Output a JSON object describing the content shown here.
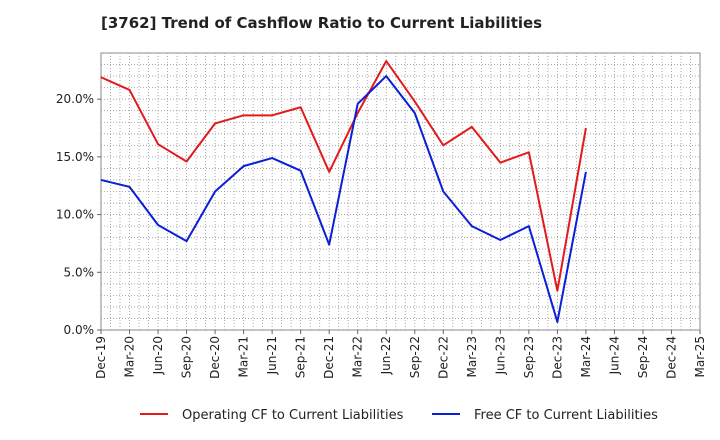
{
  "chart_data": {
    "type": "line",
    "title": "[3762]  Trend of Cashflow Ratio to Current Liabilities",
    "xlabel": "",
    "ylabel": "",
    "ylim": [
      0,
      24
    ],
    "yticks": [
      "0.0%",
      "5.0%",
      "10.0%",
      "15.0%",
      "20.0%"
    ],
    "ytick_values": [
      0,
      5,
      10,
      15,
      20
    ],
    "grid": true,
    "legend_position": "bottom",
    "categories": [
      "Dec-19",
      "Mar-20",
      "Jun-20",
      "Sep-20",
      "Dec-20",
      "Mar-21",
      "Jun-21",
      "Sep-21",
      "Dec-21",
      "Mar-22",
      "Jun-22",
      "Sep-22",
      "Dec-22",
      "Mar-23",
      "Jun-23",
      "Sep-23",
      "Dec-23",
      "Mar-24",
      "Jun-24",
      "Sep-24",
      "Dec-24",
      "Mar-25"
    ],
    "series": [
      {
        "name": "Operating CF to Current Liabilities",
        "color": "#e31a1c",
        "values": [
          21.9,
          20.8,
          16.1,
          14.6,
          17.9,
          18.6,
          18.6,
          19.3,
          13.7,
          18.8,
          23.3,
          19.8,
          16.0,
          17.6,
          14.5,
          15.4,
          3.4,
          17.5,
          null,
          null,
          null,
          null
        ]
      },
      {
        "name": "Free CF to Current Liabilities",
        "color": "#0a1fd6",
        "values": [
          13.0,
          12.4,
          9.1,
          7.7,
          12.0,
          14.2,
          14.9,
          13.8,
          7.4,
          19.6,
          22.0,
          18.8,
          12.0,
          9.0,
          7.8,
          9.0,
          0.7,
          13.7,
          null,
          null,
          null,
          null
        ]
      }
    ]
  }
}
